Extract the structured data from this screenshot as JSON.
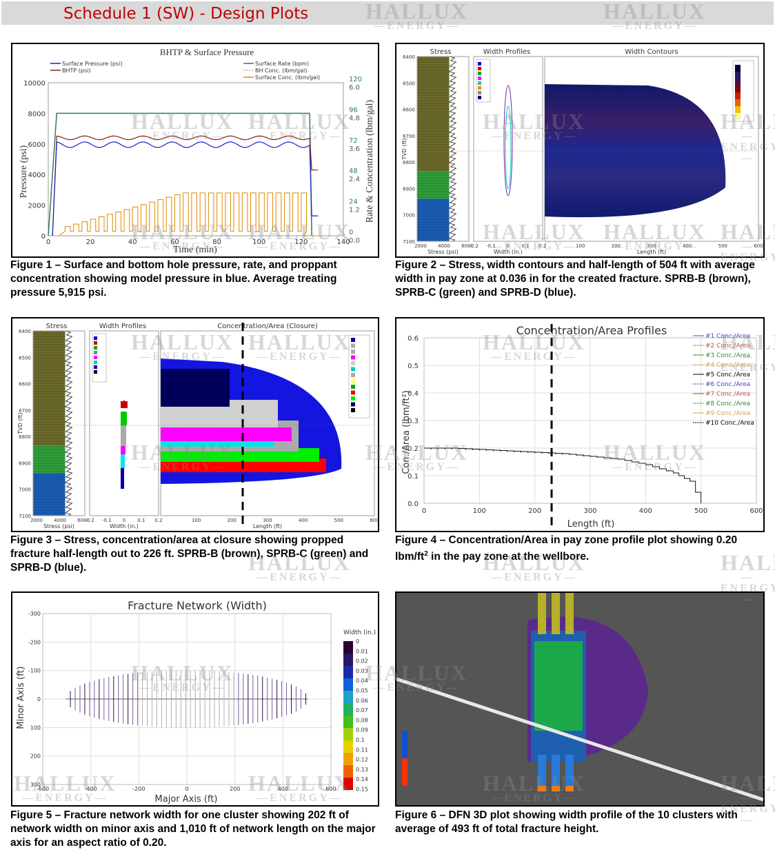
{
  "header": {
    "title": "Schedule 1 (SW) - Design Plots"
  },
  "watermark": {
    "line1": "HALLUX",
    "line2": "ENERGY"
  },
  "fig1": {
    "title": "BHTP & Surface Pressure",
    "legend": [
      "Surface Pressure (psi)",
      "BHTP (psi)",
      "Surface Rate (bpm)",
      "BH Conc. (lbm/gal)",
      "Surface Conc. (lbm/gal)"
    ],
    "ylabel": "Pressure (psi)",
    "xlabel": "Time (min)",
    "ylabel2": "Rate & Concentration (lbm/gal)",
    "caption": "Figure 1 – Surface and bottom hole pressure, rate, and proppant concentration showing model pressure in blue. Average treating pressure 5,915 psi.",
    "chart_data": {
      "type": "line",
      "title": "BHTP & Surface Pressure",
      "xlabel": "Time (min)",
      "ylabel": "Pressure (psi)",
      "xlim": [
        0,
        140
      ],
      "ylim": [
        0,
        10000
      ],
      "x_ticks": [
        "0",
        "20",
        "40",
        "60",
        "80",
        "100",
        "120",
        "140"
      ],
      "y_ticks": [
        "0",
        "2000",
        "4000",
        "6000",
        "8000",
        "10000"
      ],
      "y2_rate_ticks": [
        "0",
        "24",
        "48",
        "72",
        "96",
        "120"
      ],
      "y2_conc_ticks": [
        "0.0",
        "1.2",
        "2.4",
        "3.6",
        "4.8",
        "6.0"
      ],
      "series": [
        {
          "name": "Surface Pressure (psi)",
          "color": "#1f1fbf",
          "points": [
            [
              2,
              0
            ],
            [
              4,
              6000
            ],
            [
              124,
              6000
            ],
            [
              126,
              1300
            ],
            [
              128,
              1300
            ]
          ]
        },
        {
          "name": "BHTP (psi)",
          "color": "#8b1a1a",
          "points": [
            [
              2,
              0
            ],
            [
              4,
              6400
            ],
            [
              124,
              6400
            ],
            [
              126,
              4300
            ],
            [
              128,
              4300
            ]
          ]
        },
        {
          "name": "Surface Rate (bpm)",
          "color": "#2e7d5b",
          "points": [
            [
              0,
              0
            ],
            [
              4,
              8000
            ],
            [
              124,
              8000
            ],
            [
              125,
              0
            ]
          ]
        },
        {
          "name": "Surface Conc. (lbm/gal)",
          "color": "#e08a00",
          "points": [
            [
              0,
              0
            ],
            [
              15,
              1000
            ],
            [
              60,
              2600
            ],
            [
              120,
              2800
            ],
            [
              122,
              0
            ]
          ]
        }
      ]
    }
  },
  "fig2": {
    "t_stress": "Stress",
    "t_width": "Width Profiles",
    "t_contours": "Width Contours",
    "tvd_label": "TVD (ft)",
    "stress_ticks": [
      "6400",
      "6500",
      "6600",
      "6700",
      "6800",
      "6900",
      "7000",
      "7100"
    ],
    "x_stress": [
      "2000",
      "4000",
      "6000"
    ],
    "x_stress_label": "Stress (psi)",
    "x_width": [
      "-0.2",
      "-0.1",
      "0",
      "0.1",
      "0.2"
    ],
    "x_width_label": "Width (in.)",
    "x_len": [
      "100",
      "200",
      "300",
      "400",
      "500",
      "600"
    ],
    "x_len_label": "Length (ft)",
    "caption": "Figure 2 – Stress, width contours and half-length of 504 ft with average width in pay zone at 0.036 in for the created fracture. SPRB-B (brown), SPRB-C (green) and SPRB-D (blue)."
  },
  "fig3": {
    "t_stress": "Stress",
    "t_width": "Width Profiles",
    "t_conc": "Concentration/Area (Closure)",
    "tvd_label": "TVD (ft)",
    "stress_ticks": [
      "6400",
      "6500",
      "6600",
      "6700",
      "6800",
      "6900",
      "7000",
      "7100"
    ],
    "x_stress": [
      "2000",
      "4000",
      "6000"
    ],
    "x_stress_label": "Stress (psi)",
    "x_width": [
      "-0.2",
      "-0.1",
      "0",
      "0.1",
      "0.2"
    ],
    "x_width_label": "Width (in.)",
    "x_len": [
      "100",
      "200",
      "300",
      "400",
      "500",
      "600"
    ],
    "x_len_label": "Length (ft)",
    "caption": "Figure 3 – Stress, concentration/area at closure showing propped fracture half-length out to 226 ft.  SPRB-B (brown), SPRB-C (green) and SPRB-D (blue)."
  },
  "fig4": {
    "title": "Concentration/Area Profiles",
    "ylabel": "Con./Area (lbm/ft²)",
    "xlabel": "Length (ft)",
    "legend": [
      "#1 Conc./Area",
      "#2 Conc./Area",
      "#3 Conc./Area",
      "#4 Conc./Area",
      "#5 Conc./Area",
      "#6 Conc./Area",
      "#7 Conc./Area",
      "#8 Conc./Area",
      "#9 Conc./Area",
      "#10 Conc./Area"
    ],
    "legend_colors": [
      "#4b4bd6",
      "#c84848",
      "#2e8b2e",
      "#d9a043",
      "#000000",
      "#3b3bd6",
      "#c84848",
      "#2e8b2e",
      "#d9a043",
      "#000000"
    ],
    "caption_a": "Figure 4 – Concentration/Area in pay zone profile plot showing 0.20 lbm/ft",
    "caption_sup": "2",
    "caption_b": " in the pay zone at the wellbore.",
    "chart_data": {
      "type": "line",
      "title": "Concentration/Area Profiles",
      "xlabel": "Length (ft)",
      "ylabel": "Con./Area (lbm/ft²)",
      "xlim": [
        0,
        600
      ],
      "ylim": [
        0,
        0.6
      ],
      "x_ticks": [
        "0",
        "100",
        "200",
        "300",
        "400",
        "500",
        "600"
      ],
      "y_ticks": [
        "0.0",
        "0.1",
        "0.2",
        "0.3",
        "0.4",
        "0.5",
        "0.6"
      ],
      "x": [
        0,
        50,
        100,
        150,
        200,
        250,
        300,
        350,
        400,
        450,
        480,
        500
      ],
      "values": [
        0.2,
        0.2,
        0.195,
        0.19,
        0.185,
        0.18,
        0.17,
        0.16,
        0.14,
        0.11,
        0.08,
        0.0
      ]
    }
  },
  "fig5": {
    "title": "Fracture Network (Width)",
    "ylabel": "Minor Axis (ft)",
    "xlabel": "Major Axis (ft)",
    "x_ticks": [
      "-600",
      "-400",
      "-200",
      "0",
      "200",
      "400",
      "600"
    ],
    "y_ticks": [
      "-300",
      "-200",
      "-100",
      "0",
      "100",
      "200",
      "300"
    ],
    "cbar_title": "Width (in.)",
    "cbar_ticks": [
      "0",
      "0.01",
      "0.02",
      "0.03",
      "0.04",
      "0.05",
      "0.06",
      "0.07",
      "0.08",
      "0.09",
      "0.1",
      "0.11",
      "0.12",
      "0.13",
      "0.14",
      "0.15"
    ],
    "caption": "Figure 5 – Fracture network width for one cluster showing 202 ft of network width on minor axis and 1,010 ft of network length on the major axis for an aspect ratio of 0.20."
  },
  "fig6": {
    "caption": "Figure 6 – DFN 3D plot showing width profile of the 10 clusters with average of 493 ft of total fracture height."
  }
}
